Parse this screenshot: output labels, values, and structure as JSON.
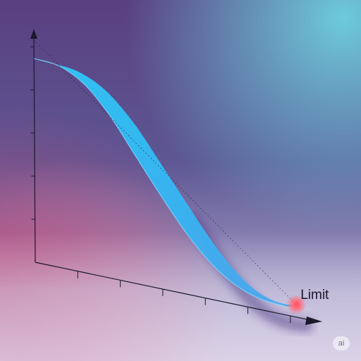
{
  "chart_data": {
    "type": "line",
    "title": "",
    "xlabel": "",
    "ylabel": "",
    "x": [
      0,
      0.1,
      0.2,
      0.3,
      0.4,
      0.5,
      0.6,
      0.7,
      0.8,
      0.9,
      1.0
    ],
    "series": [
      {
        "values": [
          0.95,
          0.94,
          0.88,
          0.76,
          0.6,
          0.44,
          0.29,
          0.17,
          0.09,
          0.05,
          0.04
        ]
      }
    ],
    "x_ticks": 6,
    "y_ticks": 5,
    "grid": false,
    "annotations": [
      {
        "label": "Limit",
        "x": 1.0,
        "y": 0.04,
        "style": "glowing point with dashed line to y-axis top"
      }
    ],
    "colors": {
      "curve_top": "#29c4f6",
      "curve_bottom": "#2a8fe0",
      "limit_point": "#ff5a6e",
      "axis": "#1a1a2a"
    }
  },
  "badge": {
    "text": "ai"
  }
}
